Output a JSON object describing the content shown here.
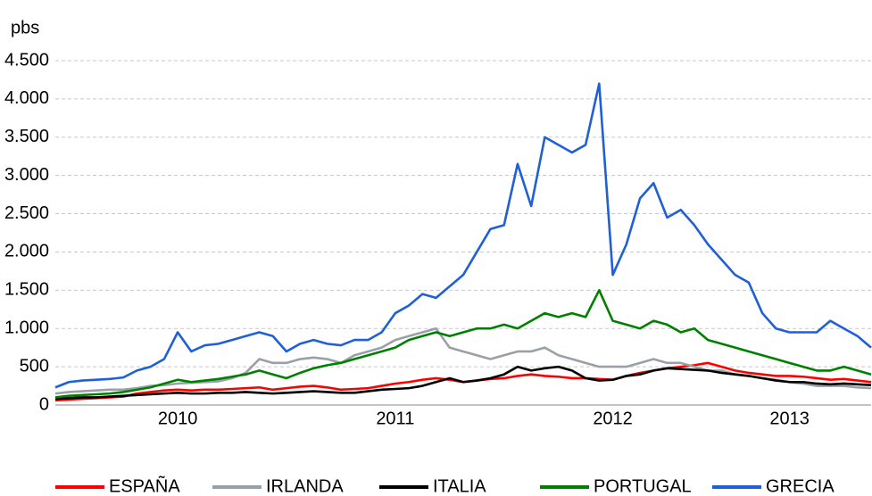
{
  "chart_data": {
    "type": "line",
    "y_label": "pbs",
    "categories": [
      null,
      null,
      null,
      null,
      null,
      null,
      null,
      null,
      null,
      "2010",
      null,
      null,
      null,
      null,
      null,
      null,
      null,
      null,
      null,
      null,
      null,
      null,
      null,
      null,
      null,
      "2011",
      null,
      null,
      null,
      null,
      null,
      null,
      null,
      null,
      null,
      null,
      null,
      null,
      null,
      null,
      null,
      "2012",
      null,
      null,
      null,
      null,
      null,
      null,
      null,
      null,
      null,
      null,
      null,
      null,
      "2013",
      null,
      null,
      null,
      null,
      null,
      null
    ],
    "series": [
      {
        "name": "ESPAÑA",
        "color": "#ff0000",
        "values": [
          60,
          70,
          80,
          90,
          100,
          110,
          150,
          170,
          190,
          200,
          190,
          200,
          200,
          210,
          220,
          230,
          200,
          220,
          240,
          250,
          230,
          200,
          210,
          220,
          250,
          280,
          300,
          330,
          350,
          330,
          300,
          320,
          340,
          350,
          380,
          400,
          380,
          370,
          350,
          350,
          340,
          330,
          380,
          420,
          450,
          480,
          500,
          520,
          550,
          500,
          450,
          420,
          400,
          380,
          380,
          370,
          350,
          330,
          340,
          320,
          300
        ]
      },
      {
        "name": "IRLANDA",
        "color": "#9aa0a8",
        "values": [
          150,
          170,
          180,
          190,
          200,
          200,
          220,
          250,
          260,
          280,
          290,
          300,
          310,
          350,
          420,
          600,
          550,
          550,
          600,
          620,
          600,
          550,
          650,
          700,
          750,
          850,
          900,
          950,
          1000,
          750,
          700,
          650,
          600,
          650,
          700,
          700,
          750,
          650,
          600,
          550,
          500,
          500,
          500,
          550,
          600,
          550,
          550,
          500,
          450,
          450,
          400,
          380,
          350,
          330,
          300,
          280,
          250,
          250,
          250,
          230,
          220
        ]
      },
      {
        "name": "ITALIA",
        "color": "#000000",
        "values": [
          80,
          90,
          100,
          100,
          110,
          120,
          130,
          140,
          150,
          160,
          150,
          150,
          160,
          160,
          170,
          160,
          150,
          160,
          170,
          180,
          170,
          160,
          160,
          180,
          200,
          210,
          220,
          250,
          300,
          350,
          300,
          320,
          350,
          400,
          500,
          450,
          480,
          500,
          450,
          350,
          320,
          330,
          380,
          400,
          450,
          480,
          470,
          460,
          450,
          420,
          400,
          380,
          350,
          320,
          300,
          300,
          280,
          270,
          280,
          270,
          260
        ]
      },
      {
        "name": "PORTUGAL",
        "color": "#008000",
        "values": [
          100,
          120,
          130,
          140,
          150,
          170,
          200,
          230,
          280,
          330,
          300,
          320,
          340,
          370,
          400,
          450,
          400,
          350,
          420,
          480,
          520,
          550,
          600,
          650,
          700,
          750,
          850,
          900,
          950,
          900,
          950,
          1000,
          1000,
          1050,
          1000,
          1100,
          1200,
          1150,
          1200,
          1150,
          1500,
          1100,
          1050,
          1000,
          1100,
          1050,
          950,
          1000,
          850,
          800,
          750,
          700,
          650,
          600,
          550,
          500,
          450,
          450,
          500,
          450,
          400
        ]
      },
      {
        "name": "GRECIA",
        "color": "#1f5fd8",
        "values": [
          230,
          300,
          320,
          330,
          340,
          360,
          450,
          500,
          600,
          950,
          700,
          780,
          800,
          850,
          900,
          950,
          900,
          700,
          800,
          850,
          800,
          780,
          850,
          850,
          950,
          1200,
          1300,
          1450,
          1400,
          1550,
          1700,
          2000,
          2300,
          2350,
          3150,
          2600,
          3500,
          3400,
          3300,
          3400,
          4200,
          1700,
          2100,
          2700,
          2900,
          2450,
          2550,
          2350,
          2100,
          1900,
          1700,
          1600,
          1200,
          1000,
          950,
          950,
          950,
          1100,
          1000,
          900,
          750
        ]
      }
    ],
    "ylim": [
      0,
      4500
    ],
    "yticks": [
      0,
      500,
      {
        "value": 1000,
        "label": "1.000"
      },
      {
        "value": 1500,
        "label": "1.500"
      },
      {
        "value": 2000,
        "label": "2.000"
      },
      {
        "value": 2500,
        "label": "2.500"
      },
      {
        "value": 3000,
        "label": "3.000"
      },
      {
        "value": 3500,
        "label": "3.500"
      },
      {
        "value": 4000,
        "label": "4.000"
      },
      {
        "value": 4500,
        "label": "4.500"
      }
    ],
    "grid": true,
    "legend": "bottom"
  }
}
